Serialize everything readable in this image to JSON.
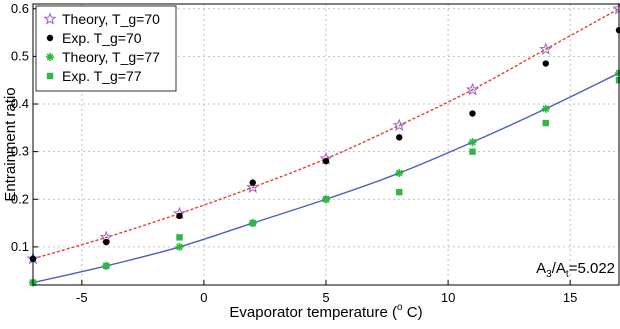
{
  "chart_data": {
    "type": "scatter",
    "title": "",
    "xlabel": "Evaporator temperature (",
    "xlabel_sup": "o",
    "xlabel_suffix": " C)",
    "ylabel": "Entrainment ratio",
    "xlim": [
      -7,
      17
    ],
    "ylim": [
      0.02,
      0.61
    ],
    "xticks": [
      -5,
      0,
      5,
      10,
      15
    ],
    "yticks": [
      0.1,
      0.2,
      0.3,
      0.4,
      0.5,
      0.6
    ],
    "xtick_labels": [
      "-5",
      "0",
      "5",
      "10",
      "15"
    ],
    "ytick_labels": [
      "0.1",
      "0.2",
      "0.3",
      "0.4",
      "0.5",
      "0.6"
    ],
    "grid": true,
    "legend_position": "top-left",
    "annotation": {
      "text_main": "A",
      "sub1": "3",
      "mid": "/A",
      "sub2": "t",
      "tail": "=5.022"
    },
    "series": [
      {
        "name": "Theory, T_g=70",
        "marker": "star",
        "color": "#a060c8",
        "x": [
          -7,
          -4,
          -1,
          2,
          5,
          8,
          11,
          14,
          17
        ],
        "values": [
          0.075,
          0.12,
          0.17,
          0.225,
          0.285,
          0.355,
          0.43,
          0.515,
          0.6
        ]
      },
      {
        "name": "Exp. T_g=70",
        "marker": "dot",
        "color": "#000000",
        "x": [
          -7,
          -4,
          -1,
          2,
          5,
          8,
          11,
          14,
          17
        ],
        "values": [
          0.075,
          0.11,
          0.165,
          0.235,
          0.28,
          0.33,
          0.38,
          0.485,
          0.555
        ]
      },
      {
        "name": "Theory, T_g=77",
        "marker": "asterisk",
        "color": "#22bb33",
        "x": [
          -7,
          -4,
          -1,
          2,
          5,
          8,
          11,
          14,
          17
        ],
        "values": [
          0.025,
          0.06,
          0.1,
          0.15,
          0.2,
          0.255,
          0.32,
          0.39,
          0.465
        ]
      },
      {
        "name": "Exp. T_g=77",
        "marker": "square",
        "color": "#33b54a",
        "x": [
          -7,
          -4,
          -1,
          2,
          5,
          8,
          11,
          14,
          17
        ],
        "values": [
          0.025,
          0.06,
          0.12,
          0.15,
          0.2,
          0.215,
          0.3,
          0.36,
          0.45
        ]
      }
    ],
    "fit_curves": [
      {
        "style": "dashed",
        "color": "#e8402a",
        "x": [
          -7,
          -4,
          -1,
          2,
          5,
          8,
          11,
          14,
          17
        ],
        "values": [
          0.075,
          0.12,
          0.17,
          0.225,
          0.285,
          0.355,
          0.43,
          0.515,
          0.6
        ]
      },
      {
        "style": "solid",
        "color": "#4a5fc8",
        "x": [
          -7,
          -4,
          -1,
          2,
          5,
          8,
          11,
          14,
          17
        ],
        "values": [
          0.025,
          0.06,
          0.1,
          0.15,
          0.2,
          0.255,
          0.32,
          0.39,
          0.465
        ]
      }
    ]
  }
}
